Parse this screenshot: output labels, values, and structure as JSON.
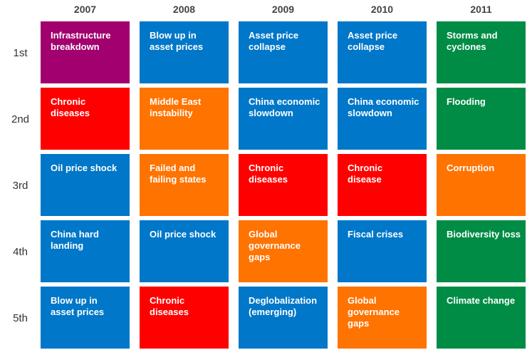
{
  "columns": [
    "2007",
    "2008",
    "2009",
    "2010",
    "2011"
  ],
  "rows": [
    "1st",
    "2nd",
    "3rd",
    "4th",
    "5th"
  ],
  "cells": [
    [
      {
        "lines": [
          "Infrastructure",
          "breakdown"
        ],
        "color": "#a2006e"
      },
      {
        "lines": [
          "Blow up in",
          "asset prices"
        ],
        "color": "#0077c8"
      },
      {
        "lines": [
          "Asset price",
          "collapse"
        ],
        "color": "#0077c8"
      },
      {
        "lines": [
          "Asset price",
          "collapse"
        ],
        "color": "#0077c8"
      },
      {
        "lines": [
          "Storms and",
          "cyclones"
        ],
        "color": "#008c45"
      }
    ],
    [
      {
        "lines": [
          "Chronic",
          "diseases"
        ],
        "color": "#ff0000"
      },
      {
        "lines": [
          "Middle East",
          "instability"
        ],
        "color": "#ff7300"
      },
      {
        "lines": [
          "China economic",
          "slowdown"
        ],
        "color": "#0077c8"
      },
      {
        "lines": [
          "China economic",
          "slowdown"
        ],
        "color": "#0077c8"
      },
      {
        "lines": [
          "Flooding"
        ],
        "color": "#008c45"
      }
    ],
    [
      {
        "lines": [
          "Oil price shock"
        ],
        "color": "#0077c8"
      },
      {
        "lines": [
          "Failed and",
          "failing states"
        ],
        "color": "#ff7300"
      },
      {
        "lines": [
          "Chronic",
          "diseases"
        ],
        "color": "#ff0000"
      },
      {
        "lines": [
          "Chronic",
          "disease"
        ],
        "color": "#ff0000"
      },
      {
        "lines": [
          "Corruption"
        ],
        "color": "#ff7300"
      }
    ],
    [
      {
        "lines": [
          "China hard",
          "landing"
        ],
        "color": "#0077c8"
      },
      {
        "lines": [
          "Oil price shock"
        ],
        "color": "#0077c8"
      },
      {
        "lines": [
          "Global",
          "governance",
          "gaps"
        ],
        "color": "#ff7300"
      },
      {
        "lines": [
          "Fiscal crises"
        ],
        "color": "#0077c8"
      },
      {
        "lines": [
          "Biodiversity loss"
        ],
        "color": "#008c45"
      }
    ],
    [
      {
        "lines": [
          "Blow up in",
          "asset prices"
        ],
        "color": "#0077c8"
      },
      {
        "lines": [
          "Chronic",
          "diseases"
        ],
        "color": "#ff0000"
      },
      {
        "lines": [
          "Deglobalization",
          "(emerging)"
        ],
        "color": "#0077c8"
      },
      {
        "lines": [
          "Global",
          "governance",
          "gaps"
        ],
        "color": "#ff7300"
      },
      {
        "lines": [
          "Climate change"
        ],
        "color": "#008c45"
      }
    ]
  ]
}
